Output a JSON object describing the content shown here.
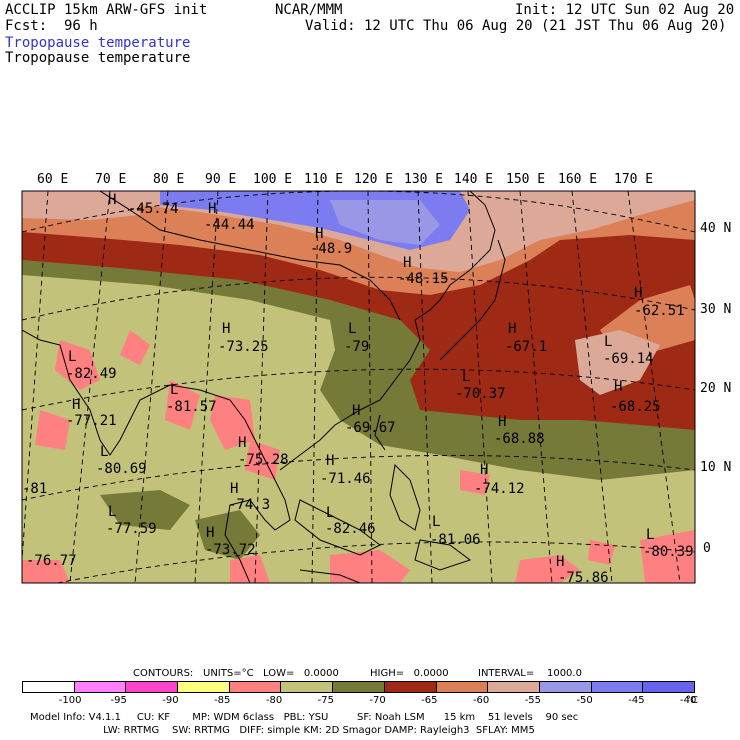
{
  "header": {
    "model": "ACCLIP 15km ARW-GFS init",
    "org": "NCAR/MMM",
    "init": "Init: 12 UTC Sun 02 Aug 20",
    "fcst": "Fcst:  96 h",
    "valid": "Valid: 12 UTC Thu 06 Aug 20 (21 JST Thu 06 Aug 20)",
    "field_title_1": "Tropopause temperature",
    "field_title_2": "Tropopause temperature"
  },
  "lon_labels": [
    "60 E",
    "70 E",
    "80 E",
    "90 E",
    "100 E",
    "110 E",
    "120 E",
    "130 E",
    "140 E",
    "150 E",
    "160 E",
    "170 E"
  ],
  "lat_labels": [
    "40 N",
    "30 N",
    "20 N",
    "10 N",
    "0"
  ],
  "markers": [
    {
      "type": "H",
      "value": "-45.74"
    },
    {
      "type": "H",
      "value": "-44.44"
    },
    {
      "type": "H",
      "value": "-48.9"
    },
    {
      "type": "H",
      "value": "-48.15"
    },
    {
      "type": "H",
      "value": "-62.51"
    },
    {
      "type": "H",
      "value": "-73.25"
    },
    {
      "type": "L",
      "value": "-79"
    },
    {
      "type": "H",
      "value": "-67.1"
    },
    {
      "type": "L",
      "value": "-69.14"
    },
    {
      "type": "L",
      "value": "-82.49"
    },
    {
      "type": "L",
      "value": "-70.37"
    },
    {
      "type": "H",
      "value": "-68.25"
    },
    {
      "type": "H",
      "value": "-77.21"
    },
    {
      "type": "L",
      "value": "-81.57"
    },
    {
      "type": "H",
      "value": "-69.67"
    },
    {
      "type": "H",
      "value": "-68.88"
    },
    {
      "type": "L",
      "value": "-80.69"
    },
    {
      "type": "H",
      "value": "-75.28"
    },
    {
      "type": "H",
      "value": "-71.46"
    },
    {
      "type": "H",
      "value": "-74.12"
    },
    {
      "type": "L",
      "value": "-81"
    },
    {
      "type": "H",
      "value": "-74.3"
    },
    {
      "type": "L",
      "value": "-77.59"
    },
    {
      "type": "L",
      "value": "-82.46"
    },
    {
      "type": "L",
      "value": "-81.06"
    },
    {
      "type": "H",
      "value": "-73.72"
    },
    {
      "type": "L",
      "value": "-80.39"
    },
    {
      "type": "H",
      "value": "-76.77"
    },
    {
      "type": "H",
      "value": "-75.86"
    }
  ],
  "contours": {
    "label": "CONTOURS:",
    "units": "UNITS=°C",
    "low": "LOW=   0.0000",
    "high": "HIGH=   0.0000",
    "interval": "INTERVAL=    1000.0"
  },
  "colorbar": {
    "colors": [
      "#ffffff",
      "#ff80ff",
      "#ff44cc",
      "#ffff80",
      "#ff8080",
      "#c2c27a",
      "#767a38",
      "#9e2a16",
      "#dc8058",
      "#dca898",
      "#9898e6",
      "#7c7cf0",
      "#6464ee"
    ],
    "ticks": [
      "-100",
      "-95",
      "-90",
      "-85",
      "-80",
      "-75",
      "-70",
      "-65",
      "-60",
      "-55",
      "-50",
      "-45",
      "-40"
    ],
    "unit": "°C"
  },
  "footer": {
    "line1": "Model Info: V4.1.1     CU: KF       MP: WDM 6class   PBL: YSU         SF: Noah LSM      15 km    51 levels    90 sec",
    "line2": "                       LW: RRTMG    SW: RRTMG   DIFF: simple KM: 2D Smagor DAMP: Rayleigh3  SFLAY: MM5"
  }
}
